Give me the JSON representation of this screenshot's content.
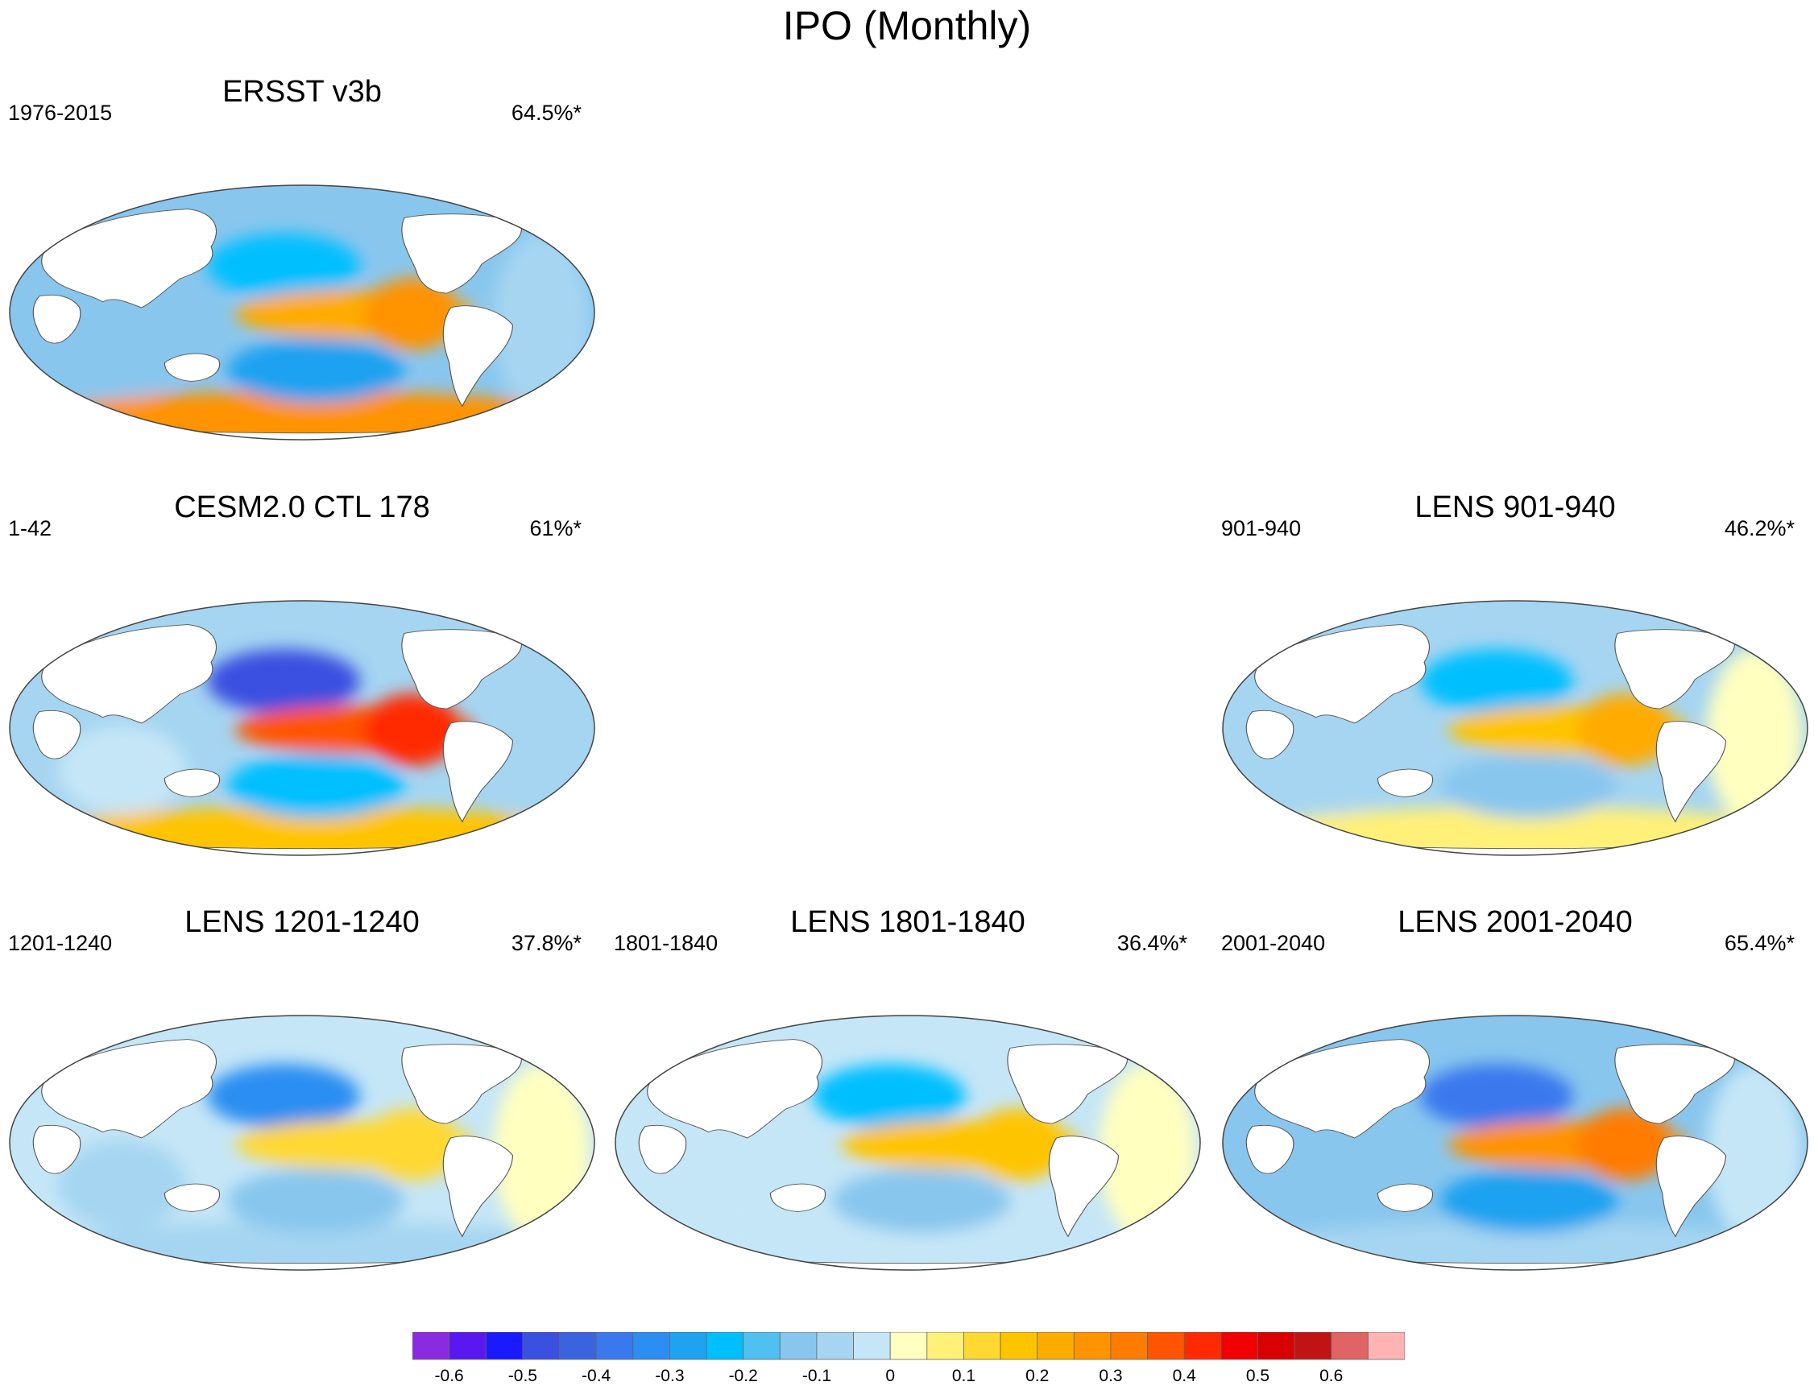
{
  "title": "IPO (Monthly)",
  "panels": [
    {
      "id": "ersst",
      "title": "ERSST v3b",
      "period": "1976-2015",
      "percent": "64.5%*",
      "pattern": {
        "pac": 0.24,
        "np": -0.22,
        "sp": -0.28,
        "so": 0.3,
        "atl": -0.08,
        "ind": -0.12
      }
    },
    {
      "id": "cesm",
      "title": "CESM2.0 CTL 178",
      "period": "1-42",
      "percent": "61%*",
      "pattern": {
        "pac": 0.38,
        "np": -0.5,
        "sp": -0.22,
        "so": 0.16,
        "atl": -0.06,
        "ind": -0.05
      }
    },
    {
      "id": "lens901",
      "title": "LENS 901-940",
      "period": "901-940",
      "percent": "46.2%*",
      "pattern": {
        "pac": 0.18,
        "np": -0.24,
        "sp": -0.15,
        "so": 0.06,
        "atl": 0.02,
        "ind": -0.1
      }
    },
    {
      "id": "lens1201",
      "title": "LENS 1201-1240",
      "period": "1201-1240",
      "percent": "37.8%*",
      "pattern": {
        "pac": 0.12,
        "np": -0.32,
        "sp": -0.12,
        "so": -0.06,
        "atl": 0.04,
        "ind": -0.06
      }
    },
    {
      "id": "lens1801",
      "title": "LENS 1801-1840",
      "period": "1801-1840",
      "percent": "36.4%*",
      "pattern": {
        "pac": 0.16,
        "np": -0.22,
        "sp": -0.12,
        "so": -0.04,
        "atl": 0.03,
        "ind": -0.05
      }
    },
    {
      "id": "lens2001",
      "title": "LENS 2001-2040",
      "period": "2001-2040",
      "percent": "65.4%*",
      "pattern": {
        "pac": 0.3,
        "np": -0.4,
        "sp": -0.28,
        "so": -0.1,
        "atl": -0.04,
        "ind": -0.14
      }
    }
  ],
  "colorbar": {
    "colors": [
      "#8a2be2",
      "#5a18f0",
      "#1a1aff",
      "#3a50e0",
      "#3a63e0",
      "#3a78ee",
      "#2c8ef2",
      "#1fa2f0",
      "#00bfff",
      "#4fc0ef",
      "#88c6ee",
      "#a5d5f1",
      "#c5e6f7",
      "#ffffbf",
      "#fff078",
      "#ffd832",
      "#ffc400",
      "#ffab00",
      "#ff9300",
      "#ff7c00",
      "#ff5500",
      "#ff2a00",
      "#f00000",
      "#d80000",
      "#c01414",
      "#e06464",
      "#ffb4b4"
    ],
    "tick_labels": [
      "-0.6",
      "-0.5",
      "-0.4",
      "-0.3",
      "-0.2",
      "-0.1",
      "0",
      "0.1",
      "0.2",
      "0.3",
      "0.4",
      "0.5",
      "0.6"
    ],
    "tick_values": [
      -0.6,
      -0.5,
      -0.4,
      -0.3,
      -0.2,
      -0.1,
      0,
      0.1,
      0.2,
      0.3,
      0.4,
      0.5,
      0.6
    ],
    "min": -0.65,
    "max": 0.7
  }
}
